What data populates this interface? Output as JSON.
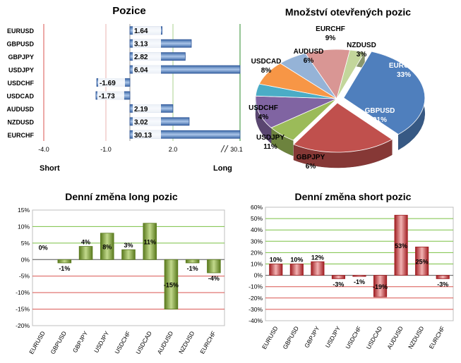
{
  "colors": {
    "bar_blue": "#4f7fbd",
    "bar_green": "#6f8f2e",
    "bar_red": "#c0282d",
    "grid_green": "#7ac143",
    "grid_red": "#d9534f",
    "panel_bg": "#f2f2f2"
  },
  "chart_data": [
    {
      "type": "bar",
      "orientation": "horizontal",
      "title": "Pozice",
      "categories": [
        "EURUSD",
        "GBPUSD",
        "GBPJPY",
        "USDJPY",
        "USDCHF",
        "USDCAD",
        "AUDUSD",
        "NZDUSD",
        "EURCHF"
      ],
      "values": [
        1.64,
        3.13,
        2.82,
        6.04,
        -1.69,
        -1.73,
        2.19,
        3.02,
        30.13
      ],
      "value_labels": [
        "1.64",
        "3.13",
        "2.82",
        "6.04",
        "-1.69",
        "-1.73",
        "2.19",
        "3.02",
        "30.13"
      ],
      "x_ticks": [
        "-4.0",
        "-1.0",
        "2.0",
        "30.1"
      ],
      "xlim": [
        -4,
        6
      ],
      "axis_break": true,
      "left_label": "Short",
      "right_label": "Long"
    },
    {
      "type": "pie",
      "title": "Množství otevřených pozic",
      "slices": [
        {
          "label": "EURUSD",
          "value": 33,
          "value_label": "33%",
          "color": "#4f7fbd"
        },
        {
          "label": "GBPUSD",
          "value": 21,
          "value_label": "21%",
          "color": "#c0504d"
        },
        {
          "label": "GBPJPY",
          "value": 6,
          "value_label": "6%",
          "color": "#9bbb59"
        },
        {
          "label": "USDJPY",
          "value": 11,
          "value_label": "11%",
          "color": "#8064a2"
        },
        {
          "label": "USDCHF",
          "value": 4,
          "value_label": "4%",
          "color": "#4bacc6"
        },
        {
          "label": "USDCAD",
          "value": 8,
          "value_label": "8%",
          "color": "#f79646"
        },
        {
          "label": "AUDUSD",
          "value": 6,
          "value_label": "6%",
          "color": "#95b3d7"
        },
        {
          "label": "EURCHF",
          "value": 9,
          "value_label": "9%",
          "color": "#d99694"
        },
        {
          "label": "NZDUSD",
          "value": 3,
          "value_label": "3%",
          "color": "#c3d69b"
        }
      ]
    },
    {
      "type": "bar",
      "title": "Denní změna long pozic",
      "categories": [
        "EURUSD",
        "GBPUSD",
        "GBPJPY",
        "USDJPY",
        "USDCHF",
        "USDCAD",
        "AUDUSD",
        "NZDUSD",
        "EURCHF"
      ],
      "values": [
        0,
        -1,
        4,
        8,
        3,
        11,
        -15,
        -1,
        -4
      ],
      "value_labels": [
        "0%",
        "-1%",
        "4%",
        "8%",
        "3%",
        "11%",
        "-15%",
        "-1%",
        "-4%"
      ],
      "y_ticks": [
        "15%",
        "10%",
        "5%",
        "0%",
        "-5%",
        "-10%",
        "-15%",
        "-20%"
      ],
      "ylim": [
        -20,
        15
      ]
    },
    {
      "type": "bar",
      "title": "Denní změna short pozic",
      "categories": [
        "EURUSD",
        "GBPUSD",
        "GBPJPY",
        "USDJPY",
        "USDCHF",
        "USDCAD",
        "AUDUSD",
        "NZDUSD",
        "EURCHF"
      ],
      "values": [
        10,
        10,
        12,
        -3,
        -1,
        -19,
        53,
        25,
        -3
      ],
      "value_labels": [
        "10%",
        "10%",
        "12%",
        "-3%",
        "-1%",
        "-19%",
        "53%",
        "25%",
        "-3%"
      ],
      "y_ticks": [
        "60%",
        "50%",
        "40%",
        "30%",
        "20%",
        "10%",
        "0%",
        "-10%",
        "-20%",
        "-30%",
        "-40%"
      ],
      "ylim": [
        -40,
        60
      ]
    }
  ]
}
